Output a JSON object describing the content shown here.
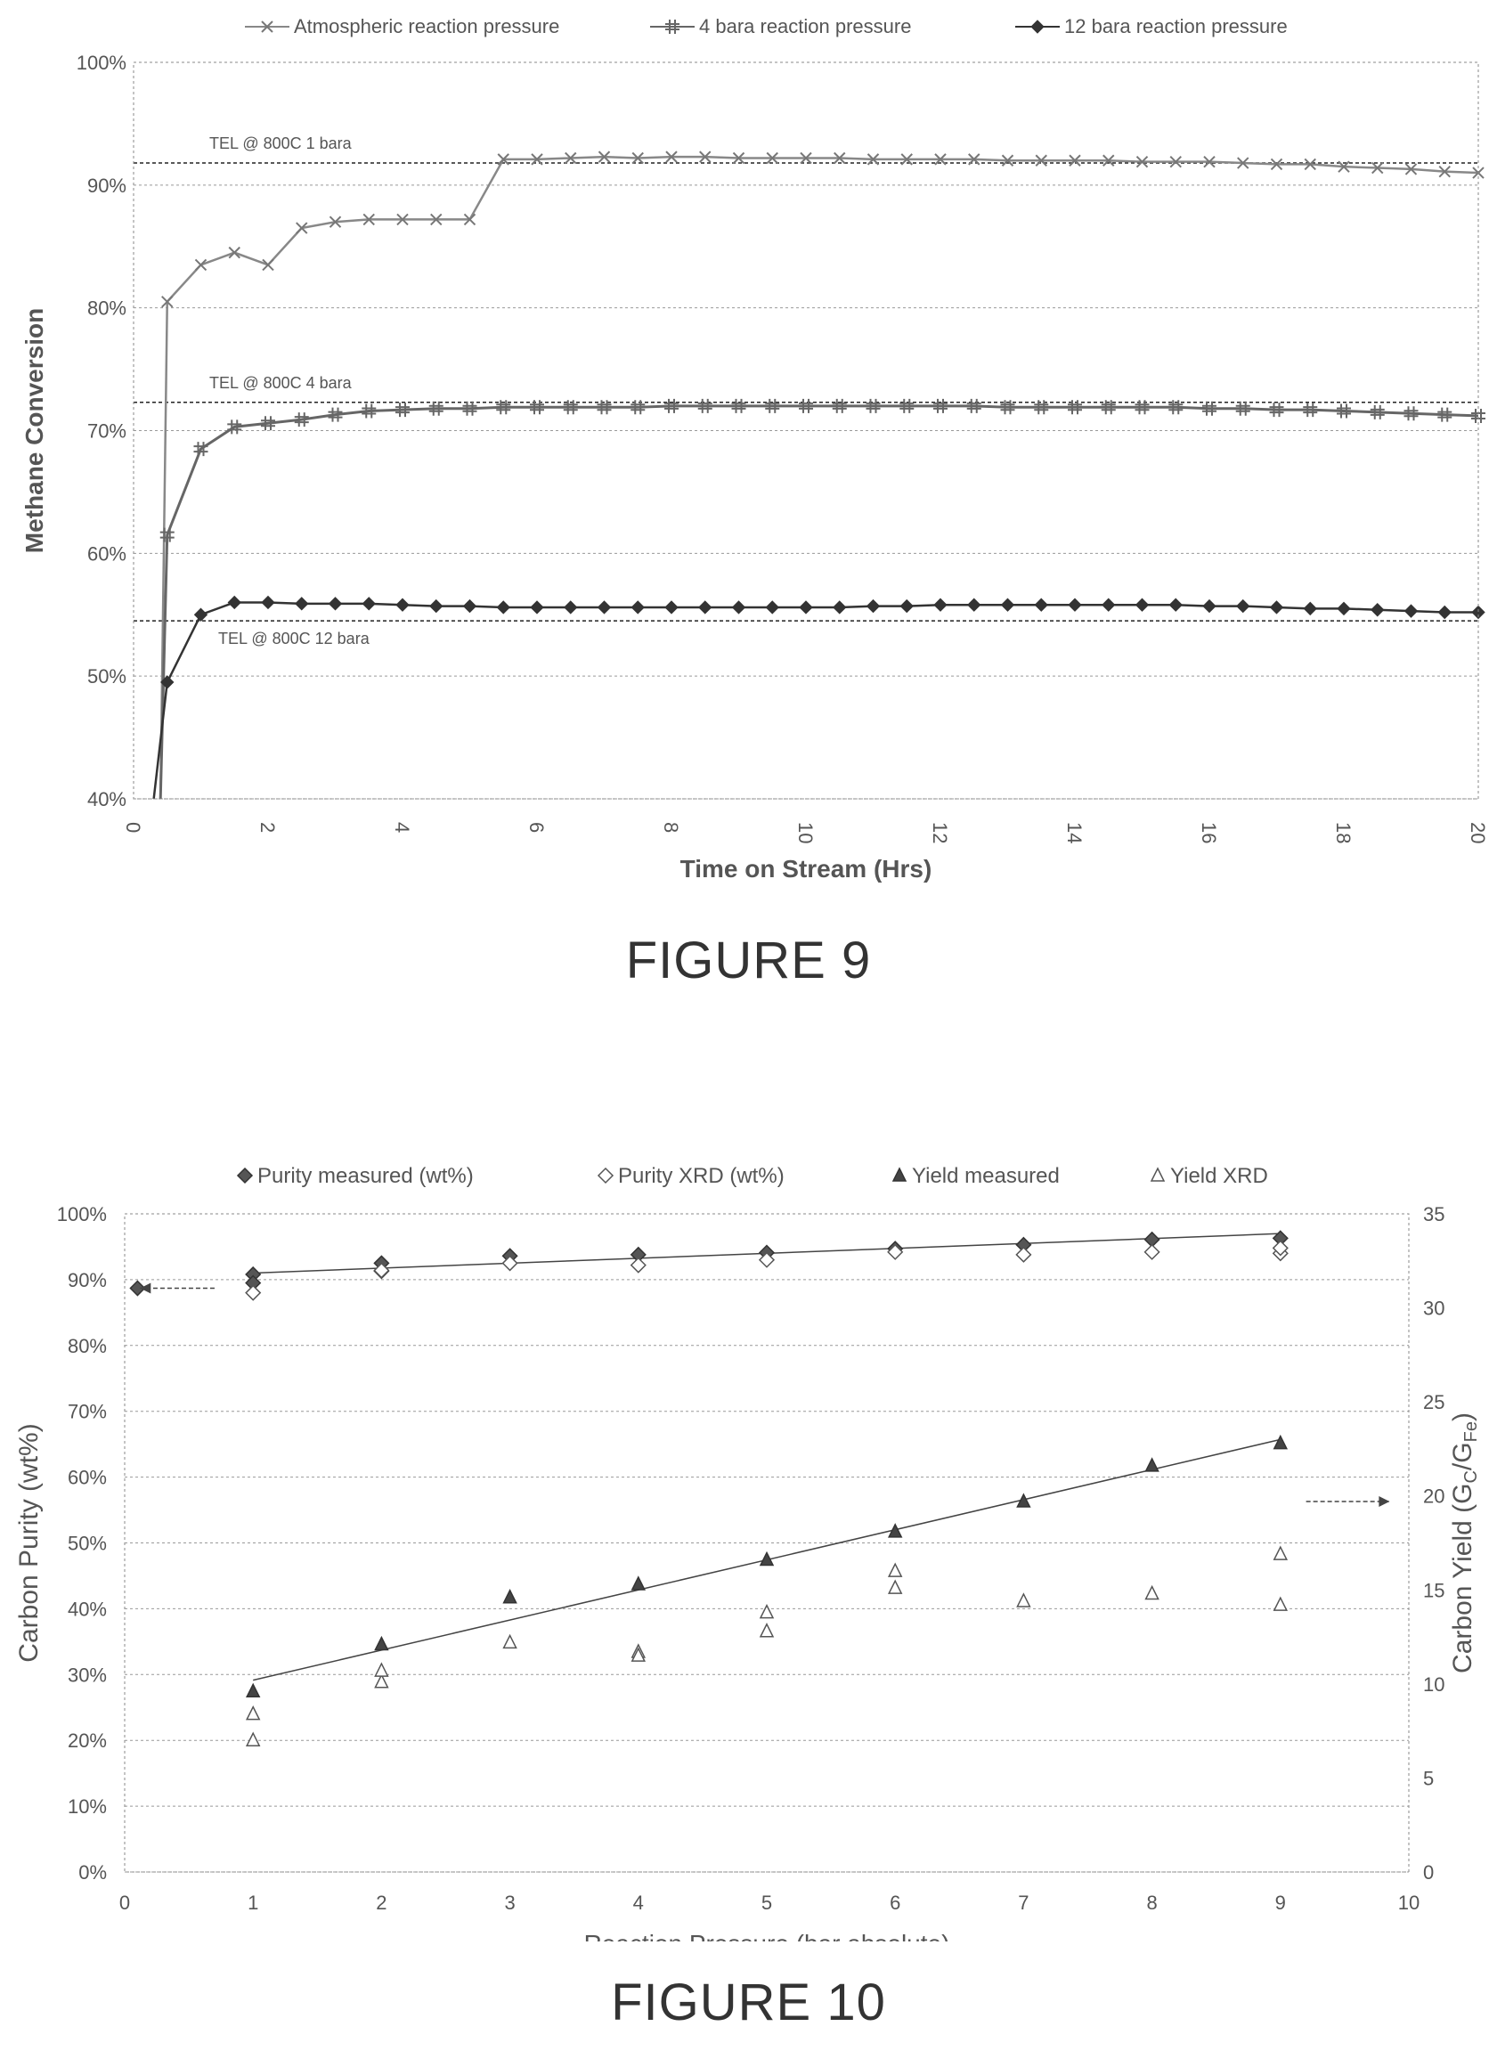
{
  "captions": {
    "fig9": "FIGURE 9",
    "fig10": "FIGURE 10"
  },
  "chart_data": [
    {
      "type": "line",
      "xlabel": "Time on Stream (Hrs)",
      "ylabel": "Methane Conversion",
      "xlim": [
        0,
        20
      ],
      "ylim": [
        40,
        100
      ],
      "x_ticks": [
        "0",
        "2",
        "4",
        "6",
        "8",
        "10",
        "12",
        "14",
        "16",
        "18",
        "20"
      ],
      "y_ticks": [
        "40%",
        "50%",
        "60%",
        "70%",
        "80%",
        "90%",
        "100%"
      ],
      "grid": true,
      "legend_position": "top",
      "series": [
        {
          "name": "Atmospheric reaction pressure",
          "marker": "x",
          "x": [
            0.4,
            0.5,
            1,
            1.5,
            2,
            2.5,
            3,
            3.5,
            4,
            4.5,
            5,
            5.5,
            6,
            6.5,
            7,
            7.5,
            8,
            8.5,
            9,
            9.5,
            10,
            10.5,
            11,
            11.5,
            12,
            12.5,
            13,
            13.5,
            14,
            14.5,
            15,
            15.5,
            16,
            16.5,
            17,
            17.5,
            18,
            18.5,
            19,
            19.5,
            20
          ],
          "y": [
            40,
            80.5,
            83.5,
            84.5,
            83.5,
            86.5,
            87,
            87.2,
            87.2,
            87.2,
            87.2,
            92.1,
            92.1,
            92.2,
            92.3,
            92.2,
            92.3,
            92.3,
            92.2,
            92.2,
            92.2,
            92.2,
            92.1,
            92.1,
            92.1,
            92.1,
            92,
            92,
            92,
            92,
            91.9,
            91.9,
            91.9,
            91.8,
            91.7,
            91.7,
            91.5,
            91.4,
            91.3,
            91.1,
            91
          ]
        },
        {
          "name": "4 bara reaction pressure",
          "marker": "hash",
          "x": [
            0.4,
            0.5,
            1,
            1.5,
            2,
            2.5,
            3,
            3.5,
            4,
            4.5,
            5,
            5.5,
            6,
            6.5,
            7,
            7.5,
            8,
            8.5,
            9,
            9.5,
            10,
            10.5,
            11,
            11.5,
            12,
            12.5,
            13,
            13.5,
            14,
            14.5,
            15,
            15.5,
            16,
            16.5,
            17,
            17.5,
            18,
            18.5,
            19,
            19.5,
            20
          ],
          "y": [
            40,
            61.5,
            68.5,
            70.3,
            70.6,
            70.9,
            71.3,
            71.6,
            71.7,
            71.8,
            71.8,
            71.9,
            71.9,
            71.9,
            71.9,
            71.9,
            72,
            72,
            72,
            72,
            72,
            72,
            72,
            72,
            72,
            72,
            71.9,
            71.9,
            71.9,
            71.9,
            71.9,
            71.9,
            71.8,
            71.8,
            71.7,
            71.7,
            71.6,
            71.5,
            71.4,
            71.3,
            71.2
          ]
        },
        {
          "name": "12 bara reaction pressure",
          "marker": "diamond",
          "x": [
            0.3,
            0.5,
            1,
            1.5,
            2,
            2.5,
            3,
            3.5,
            4,
            4.5,
            5,
            5.5,
            6,
            6.5,
            7,
            7.5,
            8,
            8.5,
            9,
            9.5,
            10,
            10.5,
            11,
            11.5,
            12,
            12.5,
            13,
            13.5,
            14,
            14.5,
            15,
            15.5,
            16,
            16.5,
            17,
            17.5,
            18,
            18.5,
            19,
            19.5,
            20
          ],
          "y": [
            40,
            49.5,
            55,
            56,
            56,
            55.9,
            55.9,
            55.9,
            55.8,
            55.7,
            55.7,
            55.6,
            55.6,
            55.6,
            55.6,
            55.6,
            55.6,
            55.6,
            55.6,
            55.6,
            55.6,
            55.6,
            55.7,
            55.7,
            55.8,
            55.8,
            55.8,
            55.8,
            55.8,
            55.8,
            55.8,
            55.8,
            55.7,
            55.7,
            55.6,
            55.5,
            55.5,
            55.4,
            55.3,
            55.2,
            55.2
          ]
        }
      ],
      "reference_lines": [
        {
          "label": "TEL @ 800C 1 bara",
          "y": 91.8
        },
        {
          "label": "TEL @ 800C 4 bara",
          "y": 72.3
        },
        {
          "label": "TEL @ 800C 12 bara",
          "y": 54.5
        }
      ]
    },
    {
      "type": "scatter",
      "xlabel": "Reaction Pressure (bar absolute)",
      "ylabel": "Carbon Purity (wt%)",
      "y2label": "Carbon Yield (G",
      "y2label_sub1": "C",
      "y2label_mid": "/G",
      "y2label_sub2": "Fe",
      "y2label_end": ")",
      "xlim": [
        0,
        10
      ],
      "ylim": [
        0,
        100
      ],
      "y2lim": [
        0,
        35
      ],
      "x_ticks": [
        "0",
        "1",
        "2",
        "3",
        "4",
        "5",
        "6",
        "7",
        "8",
        "9",
        "10"
      ],
      "y_ticks": [
        "0%",
        "10%",
        "20%",
        "30%",
        "40%",
        "50%",
        "60%",
        "70%",
        "80%",
        "90%",
        "100%"
      ],
      "y2_ticks": [
        "0",
        "5",
        "10",
        "15",
        "20",
        "25",
        "30",
        "35"
      ],
      "grid": true,
      "legend_position": "top",
      "series": [
        {
          "name": "Purity measured (wt%)",
          "marker": "diamond-filled",
          "axis": "left",
          "points": [
            [
              0.1,
              88.7
            ],
            [
              1,
              90.8
            ],
            [
              1,
              89.5
            ],
            [
              2,
              92.5
            ],
            [
              2,
              91.3
            ],
            [
              3,
              93.6
            ],
            [
              4,
              93.8
            ],
            [
              5,
              94.1
            ],
            [
              6,
              94.7
            ],
            [
              7,
              95.3
            ],
            [
              8,
              96.1
            ],
            [
              9,
              96.3
            ]
          ]
        },
        {
          "name": "Purity XRD (wt%)",
          "marker": "diamond-open",
          "axis": "left",
          "points": [
            [
              1,
              88
            ],
            [
              2,
              91.4
            ],
            [
              3,
              92.5
            ],
            [
              4,
              92.2
            ],
            [
              5,
              93
            ],
            [
              6,
              94.2
            ],
            [
              7,
              93.8
            ],
            [
              8,
              94.2
            ],
            [
              9,
              94
            ],
            [
              9,
              94.8
            ]
          ]
        },
        {
          "name": "Yield measured",
          "marker": "triangle-filled",
          "axis": "right",
          "points": [
            [
              1,
              9.6
            ],
            [
              2,
              12.1
            ],
            [
              3,
              14.6
            ],
            [
              4,
              15.3
            ],
            [
              5,
              16.6
            ],
            [
              6,
              18.1
            ],
            [
              7,
              19.7
            ],
            [
              8,
              21.6
            ],
            [
              9,
              22.8
            ]
          ]
        },
        {
          "name": "Yield XRD",
          "marker": "triangle-open",
          "axis": "right",
          "points": [
            [
              1,
              7
            ],
            [
              1,
              8.4
            ],
            [
              2,
              10.1
            ],
            [
              2,
              10.7
            ],
            [
              3,
              12.2
            ],
            [
              4,
              11.7
            ],
            [
              4,
              11.5
            ],
            [
              5,
              12.8
            ],
            [
              5,
              13.8
            ],
            [
              6,
              15.1
            ],
            [
              6,
              16
            ],
            [
              7,
              14.4
            ],
            [
              8,
              14.8
            ],
            [
              9,
              14.2
            ],
            [
              9,
              16.9
            ]
          ]
        }
      ],
      "trendlines": [
        {
          "series": "Purity measured (wt%)",
          "axis": "left",
          "from": [
            1,
            91
          ],
          "to": [
            9,
            97
          ]
        },
        {
          "series": "Yield measured",
          "axis": "right",
          "from": [
            1,
            10.2
          ],
          "to": [
            9,
            23
          ]
        }
      ],
      "annotations": [
        {
          "type": "arrow",
          "direction": "left",
          "near_axis": "left",
          "at_y": 88.7
        },
        {
          "type": "arrow",
          "direction": "right",
          "near_axis": "right",
          "at_y2": 19.7
        }
      ]
    }
  ]
}
